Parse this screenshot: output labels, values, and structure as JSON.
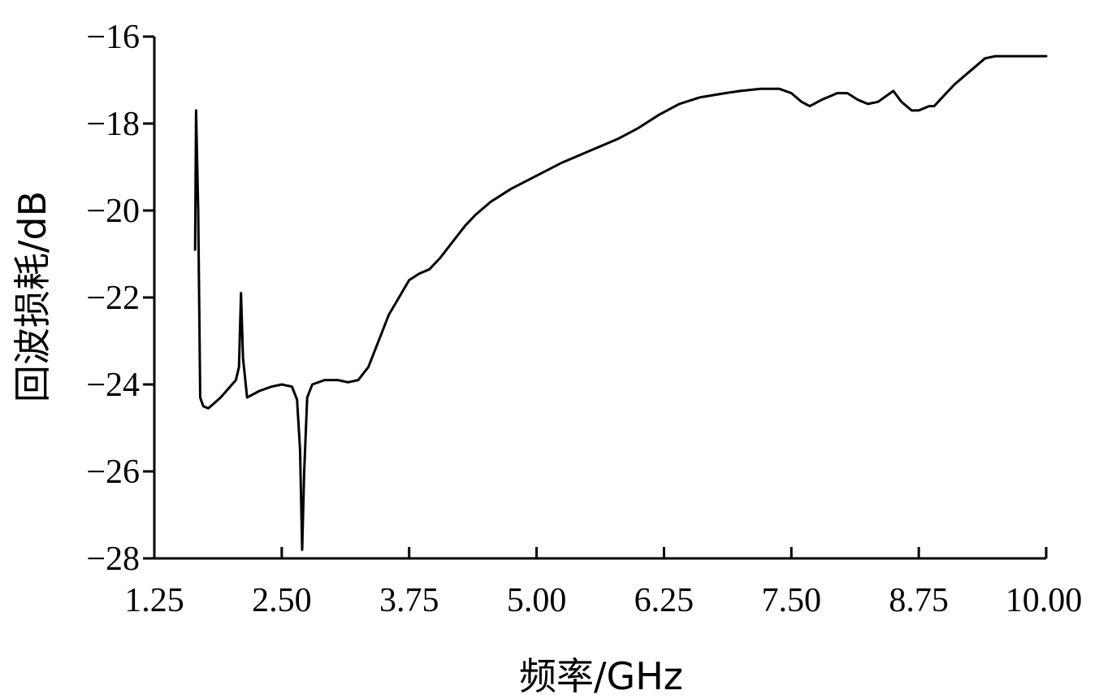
{
  "chart_data": {
    "type": "line",
    "xlabel": "频率/GHz",
    "ylabel": "回波损耗/dB",
    "xlim": [
      1.25,
      10.0
    ],
    "ylim": [
      -28,
      -16
    ],
    "x_ticks": [
      "1.25",
      "2.50",
      "3.75",
      "5.00",
      "6.25",
      "7.50",
      "8.75",
      "10.00"
    ],
    "y_ticks": [
      "−16",
      "−18",
      "−20",
      "−22",
      "−24",
      "−26",
      "−28"
    ],
    "x_tick_values": [
      1.25,
      2.5,
      3.75,
      5.0,
      6.25,
      7.5,
      8.75,
      10.0
    ],
    "y_tick_values": [
      -16,
      -18,
      -20,
      -22,
      -24,
      -26,
      -28
    ],
    "grid": false,
    "series": [
      {
        "values_xy": [
          [
            1.65,
            -20.9
          ],
          [
            1.66,
            -17.7
          ],
          [
            1.68,
            -20.0
          ],
          [
            1.7,
            -24.3
          ],
          [
            1.73,
            -24.5
          ],
          [
            1.78,
            -24.55
          ],
          [
            1.9,
            -24.3
          ],
          [
            2.05,
            -23.9
          ],
          [
            2.08,
            -23.6
          ],
          [
            2.1,
            -21.9
          ],
          [
            2.12,
            -23.4
          ],
          [
            2.16,
            -24.3
          ],
          [
            2.28,
            -24.15
          ],
          [
            2.4,
            -24.05
          ],
          [
            2.5,
            -24.0
          ],
          [
            2.6,
            -24.05
          ],
          [
            2.65,
            -24.35
          ],
          [
            2.68,
            -25.5
          ],
          [
            2.7,
            -27.8
          ],
          [
            2.72,
            -26.0
          ],
          [
            2.75,
            -24.3
          ],
          [
            2.8,
            -24.0
          ],
          [
            2.92,
            -23.9
          ],
          [
            3.05,
            -23.9
          ],
          [
            3.15,
            -23.95
          ],
          [
            3.25,
            -23.9
          ],
          [
            3.35,
            -23.6
          ],
          [
            3.45,
            -23.0
          ],
          [
            3.55,
            -22.4
          ],
          [
            3.65,
            -22.0
          ],
          [
            3.75,
            -21.6
          ],
          [
            3.85,
            -21.45
          ],
          [
            3.95,
            -21.35
          ],
          [
            4.05,
            -21.1
          ],
          [
            4.15,
            -20.8
          ],
          [
            4.3,
            -20.35
          ],
          [
            4.4,
            -20.1
          ],
          [
            4.55,
            -19.8
          ],
          [
            4.75,
            -19.5
          ],
          [
            5.0,
            -19.2
          ],
          [
            5.25,
            -18.9
          ],
          [
            5.5,
            -18.65
          ],
          [
            5.8,
            -18.35
          ],
          [
            6.0,
            -18.1
          ],
          [
            6.2,
            -17.8
          ],
          [
            6.4,
            -17.55
          ],
          [
            6.6,
            -17.4
          ],
          [
            6.85,
            -17.3
          ],
          [
            7.0,
            -17.25
          ],
          [
            7.2,
            -17.2
          ],
          [
            7.38,
            -17.2
          ],
          [
            7.5,
            -17.3
          ],
          [
            7.6,
            -17.5
          ],
          [
            7.68,
            -17.6
          ],
          [
            7.8,
            -17.45
          ],
          [
            7.95,
            -17.3
          ],
          [
            8.05,
            -17.3
          ],
          [
            8.15,
            -17.45
          ],
          [
            8.25,
            -17.55
          ],
          [
            8.35,
            -17.5
          ],
          [
            8.5,
            -17.25
          ],
          [
            8.58,
            -17.5
          ],
          [
            8.68,
            -17.7
          ],
          [
            8.75,
            -17.7
          ],
          [
            8.85,
            -17.6
          ],
          [
            8.9,
            -17.6
          ],
          [
            9.0,
            -17.35
          ],
          [
            9.1,
            -17.1
          ],
          [
            9.25,
            -16.8
          ],
          [
            9.4,
            -16.5
          ],
          [
            9.5,
            -16.45
          ],
          [
            10.0,
            -16.45
          ]
        ]
      }
    ]
  }
}
